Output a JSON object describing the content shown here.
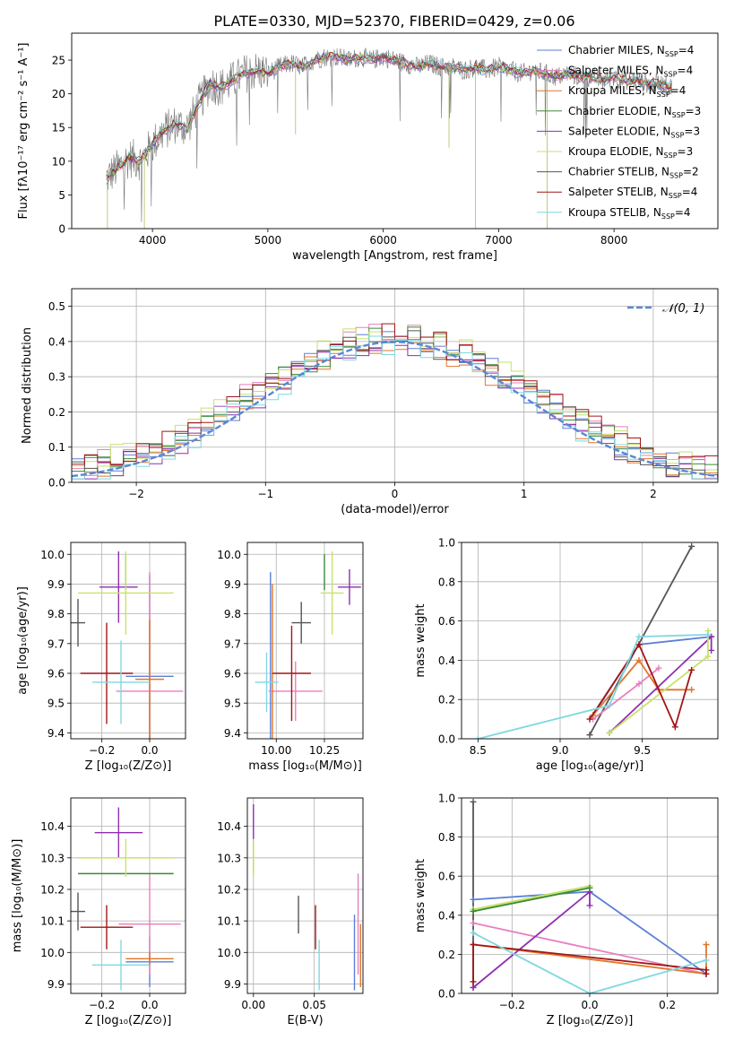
{
  "figure_title": "PLATE=0330, MJD=52370, FIBERID=0429, z=0.06",
  "colors": {
    "chabrier_miles": "#5b7fd6",
    "salpeter_miles": "#e87fbf",
    "kroupa_miles": "#e2762a",
    "chabrier_elodie": "#3a8a3a",
    "salpeter_elodie": "#8f2fb0",
    "kroupa_elodie": "#c7e26a",
    "chabrier_stelib": "#555555",
    "salpeter_stelib": "#a11616",
    "kroupa_stelib": "#7fd8e0",
    "normal_curve": "#5b86d6",
    "grid": "#b0b0b0"
  },
  "chart_data": [
    {
      "id": "spectrum",
      "type": "line",
      "xlabel": "wavelength [Angstrom, rest frame]",
      "ylabel": "Flux [fλ10⁻¹⁷ erg cm⁻² s⁻¹ A⁻¹]",
      "xlim": [
        3300,
        8900
      ],
      "ylim": [
        0,
        29
      ],
      "xticks": [
        4000,
        5000,
        6000,
        7000,
        8000
      ],
      "yticks": [
        0,
        5,
        10,
        15,
        20,
        25
      ],
      "grid": false,
      "legend_position": "right",
      "legend": [
        {
          "label": "Chabrier MILES, N",
          "sub": "SSP",
          "tail": "=4",
          "color": "#5b7fd6"
        },
        {
          "label": "Salpeter MILES, N",
          "sub": "SSP",
          "tail": "=4",
          "color": "#e87fbf"
        },
        {
          "label": "Kroupa MILES, N",
          "sub": "SSP",
          "tail": "=4",
          "color": "#e2762a"
        },
        {
          "label": "Chabrier ELODIE, N",
          "sub": "SSP",
          "tail": "=3",
          "color": "#3a8a3a"
        },
        {
          "label": "Salpeter ELODIE, N",
          "sub": "SSP",
          "tail": "=3",
          "color": "#8f2fb0"
        },
        {
          "label": "Kroupa ELODIE, N",
          "sub": "SSP",
          "tail": "=3",
          "color": "#c7e26a"
        },
        {
          "label": "Chabrier STELIB, N",
          "sub": "SSP",
          "tail": "=2",
          "color": "#555555"
        },
        {
          "label": "Salpeter STELIB, N",
          "sub": "SSP",
          "tail": "=4",
          "color": "#a11616"
        },
        {
          "label": "Kroupa STELIB, N",
          "sub": "SSP",
          "tail": "=4",
          "color": "#7fd8e0"
        }
      ],
      "x": [
        3600,
        3700,
        3800,
        3900,
        4000,
        4100,
        4200,
        4300,
        4400,
        4500,
        4600,
        4700,
        4800,
        4900,
        5000,
        5100,
        5200,
        5300,
        5400,
        5500,
        5600,
        5700,
        5800,
        5900,
        6000,
        6100,
        6200,
        6300,
        6400,
        6500,
        6600,
        6700,
        6800,
        6900,
        7000,
        7100,
        7200,
        7300,
        7400,
        7500,
        7600,
        7700,
        7800,
        7900,
        8000,
        8100,
        8200,
        8300,
        8400,
        8500
      ],
      "y": [
        7.5,
        9.0,
        10.5,
        10.0,
        12.5,
        14.5,
        15.5,
        15.0,
        18.5,
        21.5,
        21.0,
        22.0,
        23.0,
        23.5,
        23.0,
        24.0,
        24.5,
        24.0,
        25.0,
        25.5,
        25.5,
        25.0,
        25.5,
        25.0,
        25.5,
        25.0,
        24.5,
        24.0,
        24.5,
        24.0,
        24.0,
        23.5,
        24.0,
        23.5,
        24.0,
        23.5,
        23.0,
        23.5,
        23.0,
        22.5,
        23.0,
        22.5,
        22.5,
        22.0,
        22.5,
        22.0,
        22.0,
        21.5,
        21.5,
        21.0
      ]
    },
    {
      "id": "residuals",
      "type": "histogram",
      "xlabel": "(data-model)/error",
      "ylabel": "Normed distribution",
      "xlim": [
        -2.5,
        2.5
      ],
      "ylim": [
        0,
        0.55
      ],
      "xticks": [
        -2,
        -1,
        0,
        1,
        2
      ],
      "yticks": [
        0.0,
        0.1,
        0.2,
        0.3,
        0.4,
        0.5
      ],
      "grid": true,
      "legend_position": "top-right",
      "legend_label": "𝒩(0, 1)",
      "bin_width": 0.1,
      "series": [
        {
          "name": "",
          "color": "#5b7fd6",
          "offset": 0.0
        },
        {
          "name": "",
          "color": "#e87fbf",
          "offset": 0.012
        },
        {
          "name": "",
          "color": "#e2762a",
          "offset": -0.01
        },
        {
          "name": "",
          "color": "#3a8a3a",
          "offset": 0.006
        },
        {
          "name": "",
          "color": "#8f2fb0",
          "offset": -0.014
        },
        {
          "name": "",
          "color": "#c7e26a",
          "offset": 0.016
        },
        {
          "name": "",
          "color": "#555555",
          "offset": -0.006
        },
        {
          "name": "",
          "color": "#a11616",
          "offset": 0.009
        },
        {
          "name": "",
          "color": "#7fd8e0",
          "offset": -0.018
        }
      ],
      "normal_curve": {
        "mean": 0,
        "sigma": 1
      }
    },
    {
      "id": "age_vs_Z",
      "type": "errorbar",
      "xlabel": "Z [log₁₀(Z/Z⊙)]",
      "ylabel": "age  [log₁₀(age/yr)]",
      "xlim": [
        -0.33,
        0.15
      ],
      "ylim": [
        9.38,
        10.04
      ],
      "xticks": [
        -0.2,
        0.0
      ],
      "xticklabels": [
        "−0.2",
        "0.0"
      ],
      "yticks": [
        9.4,
        9.5,
        9.6,
        9.7,
        9.8,
        9.9,
        10.0
      ],
      "points": [
        {
          "color": "#5b7fd6",
          "x": 0.0,
          "y": 9.59,
          "xerr": 0.1,
          "yerr": 0.34
        },
        {
          "color": "#e87fbf",
          "x": 0.0,
          "y": 9.54,
          "xerr": 0.14,
          "yerr": 0.4
        },
        {
          "color": "#e2762a",
          "x": 0.0,
          "y": 9.58,
          "xerr": 0.06,
          "yerr": 0.2
        },
        {
          "color": "#3a8a3a",
          "x": -0.1,
          "y": 9.94,
          "xerr": 0.0,
          "yerr": 0.06
        },
        {
          "color": "#8f2fb0",
          "x": -0.13,
          "y": 9.89,
          "xerr": 0.08,
          "yerr": 0.12
        },
        {
          "color": "#c7e26a",
          "x": -0.1,
          "y": 9.87,
          "xerr": 0.2,
          "yerr": 0.14
        },
        {
          "color": "#555555",
          "x": -0.3,
          "y": 9.77,
          "xerr": 0.03,
          "yerr": 0.08
        },
        {
          "color": "#a11616",
          "x": -0.18,
          "y": 9.6,
          "xerr": 0.11,
          "yerr": 0.17
        },
        {
          "color": "#7fd8e0",
          "x": -0.12,
          "y": 9.57,
          "xerr": 0.12,
          "yerr": 0.14
        }
      ]
    },
    {
      "id": "age_vs_mass",
      "type": "errorbar",
      "xlabel": "mass [log₁₀(M/M⊙)]",
      "xlim": [
        9.85,
        10.45
      ],
      "ylim": [
        9.38,
        10.04
      ],
      "xticks": [
        10.0,
        10.25
      ],
      "xticklabels": [
        "10.00",
        "10.25"
      ],
      "yticks": [
        9.4,
        9.5,
        9.6,
        9.7,
        9.8,
        9.9,
        10.0
      ],
      "points": [
        {
          "color": "#5b7fd6",
          "x": 9.97,
          "y": 9.6,
          "xerr": 0.0,
          "yerr": 0.34
        },
        {
          "color": "#e87fbf",
          "x": 10.1,
          "y": 9.54,
          "xerr": 0.14,
          "yerr": 0.1
        },
        {
          "color": "#e2762a",
          "x": 9.98,
          "y": 9.58,
          "xerr": 0.0,
          "yerr": 0.32
        },
        {
          "color": "#3a8a3a",
          "x": 10.25,
          "y": 9.94,
          "xerr": 0.0,
          "yerr": 0.06
        },
        {
          "color": "#8f2fb0",
          "x": 10.38,
          "y": 9.89,
          "xerr": 0.06,
          "yerr": 0.06
        },
        {
          "color": "#c7e26a",
          "x": 10.29,
          "y": 9.87,
          "xerr": 0.06,
          "yerr": 0.14
        },
        {
          "color": "#555555",
          "x": 10.13,
          "y": 9.77,
          "xerr": 0.05,
          "yerr": 0.07
        },
        {
          "color": "#a11616",
          "x": 10.08,
          "y": 9.6,
          "xerr": 0.1,
          "yerr": 0.16
        },
        {
          "color": "#7fd8e0",
          "x": 9.95,
          "y": 9.57,
          "xerr": 0.06,
          "yerr": 0.1
        }
      ]
    },
    {
      "id": "massweight_vs_age",
      "type": "line",
      "xlabel": "age  [log₁₀(age/yr)]",
      "ylabel": "mass weight",
      "xlim": [
        8.4,
        9.96
      ],
      "ylim": [
        0,
        1
      ],
      "xticks": [
        8.5,
        9.0,
        9.5
      ],
      "yticks": [
        0.0,
        0.2,
        0.4,
        0.6,
        0.8,
        1.0
      ],
      "grid": true,
      "series": [
        {
          "name": "",
          "color": "#555555",
          "x": [
            9.18,
            9.8
          ],
          "y": [
            0.02,
            0.98
          ]
        },
        {
          "name": "",
          "color": "#5b7fd6",
          "x": [
            9.2,
            9.48,
            9.92
          ],
          "y": [
            0.12,
            0.48,
            0.52
          ]
        },
        {
          "name": "",
          "color": "#e87fbf",
          "x": [
            9.2,
            9.48,
            9.6
          ],
          "y": [
            0.1,
            0.28,
            0.36
          ]
        },
        {
          "name": "",
          "color": "#e2762a",
          "x": [
            9.2,
            9.48,
            9.6,
            9.8
          ],
          "y": [
            0.12,
            0.4,
            0.25,
            0.25
          ]
        },
        {
          "name": "",
          "color": "#8f2fb0",
          "x": [
            9.3,
            9.92,
            9.92
          ],
          "y": [
            0.03,
            0.52,
            0.45
          ]
        },
        {
          "name": "",
          "color": "#c7e26a",
          "x": [
            9.3,
            9.9,
            9.9
          ],
          "y": [
            0.03,
            0.42,
            0.55
          ]
        },
        {
          "name": "",
          "color": "#a11616",
          "x": [
            9.18,
            9.48,
            9.7,
            9.8
          ],
          "y": [
            0.1,
            0.48,
            0.06,
            0.35
          ]
        },
        {
          "name": "",
          "color": "#7fd8e0",
          "x": [
            8.5,
            9.3,
            9.48,
            9.9
          ],
          "y": [
            0.0,
            0.17,
            0.52,
            0.53
          ]
        }
      ]
    },
    {
      "id": "mass_vs_Z",
      "type": "errorbar",
      "xlabel": "Z [log₁₀(Z/Z⊙)]",
      "ylabel": "mass [log₁₀(M/M⊙)]",
      "xlim": [
        -0.33,
        0.15
      ],
      "ylim": [
        9.87,
        10.49
      ],
      "xticks": [
        -0.2,
        0.0
      ],
      "xticklabels": [
        "−0.2",
        "0.0"
      ],
      "yticks": [
        9.9,
        10.0,
        10.1,
        10.2,
        10.3,
        10.4
      ],
      "points": [
        {
          "color": "#5b7fd6",
          "x": 0.0,
          "y": 9.97,
          "xerr": 0.1,
          "yerr": 0.08
        },
        {
          "color": "#e87fbf",
          "x": 0.0,
          "y": 10.09,
          "xerr": 0.13,
          "yerr": 0.16
        },
        {
          "color": "#e2762a",
          "x": 0.0,
          "y": 9.98,
          "xerr": 0.1,
          "yerr": 0.02
        },
        {
          "color": "#3a8a3a",
          "x": -0.1,
          "y": 10.25,
          "xerr": 0.2,
          "yerr": 0.0
        },
        {
          "color": "#8f2fb0",
          "x": -0.13,
          "y": 10.38,
          "xerr": 0.1,
          "yerr": 0.08
        },
        {
          "color": "#c7e26a",
          "x": -0.1,
          "y": 10.3,
          "xerr": 0.2,
          "yerr": 0.06
        },
        {
          "color": "#555555",
          "x": -0.3,
          "y": 10.13,
          "xerr": 0.03,
          "yerr": 0.06
        },
        {
          "color": "#a11616",
          "x": -0.18,
          "y": 10.08,
          "xerr": 0.11,
          "yerr": 0.07
        },
        {
          "color": "#7fd8e0",
          "x": -0.12,
          "y": 9.96,
          "xerr": 0.12,
          "yerr": 0.08
        }
      ]
    },
    {
      "id": "mass_vs_ebv",
      "type": "errorbar",
      "xlabel": "E(B-V)",
      "xlim": [
        -0.005,
        0.09
      ],
      "ylim": [
        9.87,
        10.49
      ],
      "xticks": [
        0.0,
        0.05
      ],
      "xticklabels": [
        "0.00",
        "0.05"
      ],
      "yticks": [
        9.9,
        10.0,
        10.1,
        10.2,
        10.3,
        10.4
      ],
      "points": [
        {
          "color": "#5b7fd6",
          "x": 0.083,
          "y": 10.0,
          "xerr": 0.0,
          "yerr": 0.12
        },
        {
          "color": "#e87fbf",
          "x": 0.086,
          "y": 10.09,
          "xerr": 0.0,
          "yerr": 0.16
        },
        {
          "color": "#e2762a",
          "x": 0.088,
          "y": 9.99,
          "xerr": 0.0,
          "yerr": 0.1
        },
        {
          "color": "#3a8a3a",
          "x": 0.0,
          "y": 10.3,
          "xerr": 0.0,
          "yerr": 0.05
        },
        {
          "color": "#8f2fb0",
          "x": 0.0,
          "y": 10.4,
          "xerr": 0.0,
          "yerr": 0.07
        },
        {
          "color": "#c7e26a",
          "x": 0.0,
          "y": 10.3,
          "xerr": 0.0,
          "yerr": 0.06
        },
        {
          "color": "#555555",
          "x": 0.037,
          "y": 10.12,
          "xerr": 0.0,
          "yerr": 0.06
        },
        {
          "color": "#a11616",
          "x": 0.051,
          "y": 10.08,
          "xerr": 0.0,
          "yerr": 0.07
        },
        {
          "color": "#7fd8e0",
          "x": 0.054,
          "y": 9.96,
          "xerr": 0.0,
          "yerr": 0.08
        }
      ]
    },
    {
      "id": "massweight_vs_Z",
      "type": "line",
      "xlabel": "Z [log₁₀(Z/Z⊙)]",
      "ylabel": "mass weight",
      "xlim": [
        -0.33,
        0.33
      ],
      "ylim": [
        0,
        1
      ],
      "xticks": [
        -0.2,
        0.0,
        0.2
      ],
      "xticklabels": [
        "−0.2",
        "0.0",
        "0.2"
      ],
      "yticks": [
        0.0,
        0.2,
        0.4,
        0.6,
        0.8,
        1.0
      ],
      "grid": true,
      "series": [
        {
          "name": "",
          "color": "#555555",
          "x": [
            -0.3,
            -0.3
          ],
          "y": [
            0.03,
            0.98
          ]
        },
        {
          "name": "",
          "color": "#5b7fd6",
          "x": [
            -0.3,
            0.0,
            0.3
          ],
          "y": [
            0.48,
            0.52,
            0.1
          ]
        },
        {
          "name": "",
          "color": "#e87fbf",
          "x": [
            -0.3,
            0.3
          ],
          "y": [
            0.36,
            0.1
          ]
        },
        {
          "name": "",
          "color": "#e2762a",
          "x": [
            -0.3,
            0.3,
            0.3
          ],
          "y": [
            0.25,
            0.1,
            0.25
          ]
        },
        {
          "name": "",
          "color": "#8f2fb0",
          "x": [
            -0.3,
            0.0,
            0.0
          ],
          "y": [
            0.03,
            0.52,
            0.45
          ]
        },
        {
          "name": "",
          "color": "#c7e26a",
          "x": [
            -0.3,
            0.0,
            -0.3
          ],
          "y": [
            0.42,
            0.55,
            0.43
          ]
        },
        {
          "name": "",
          "color": "#3a8a3a",
          "x": [
            -0.3,
            0.0
          ],
          "y": [
            0.42,
            0.54
          ]
        },
        {
          "name": "",
          "color": "#a11616",
          "x": [
            -0.3,
            -0.3,
            0.3,
            0.3
          ],
          "y": [
            0.06,
            0.25,
            0.12,
            0.1
          ]
        },
        {
          "name": "",
          "color": "#7fd8e0",
          "x": [
            -0.3,
            0.0,
            0.3
          ],
          "y": [
            0.31,
            0.0,
            0.17
          ]
        }
      ]
    }
  ]
}
